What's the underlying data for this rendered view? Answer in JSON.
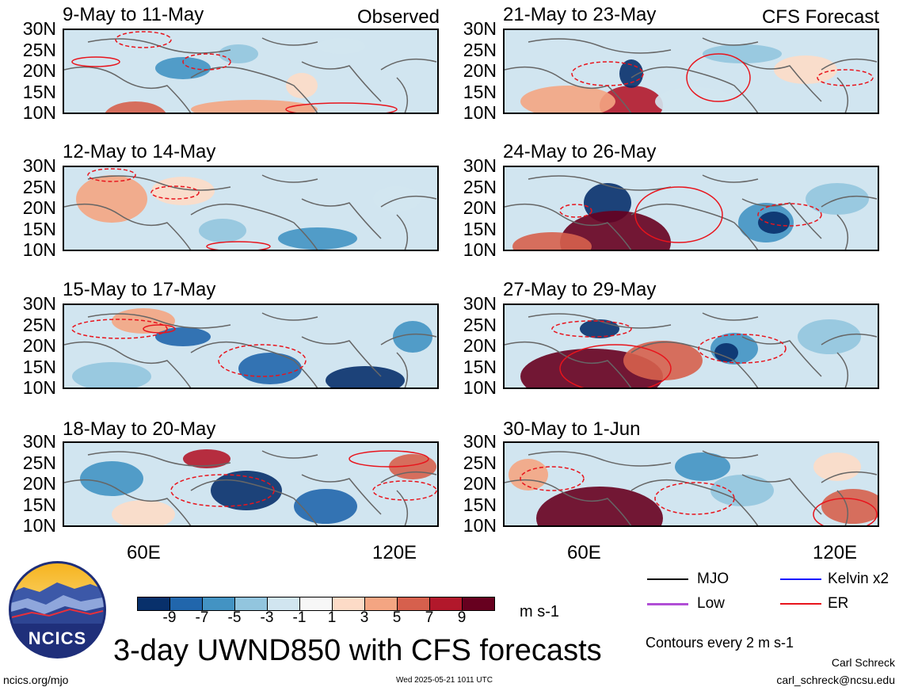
{
  "left_tag": "Observed",
  "right_tag": "CFS Forecast",
  "panels_left": [
    {
      "title": "9-May to 11-May"
    },
    {
      "title": "12-May to 14-May"
    },
    {
      "title": "15-May to 17-May"
    },
    {
      "title": "18-May to 20-May"
    }
  ],
  "panels_right": [
    {
      "title": "21-May to 23-May"
    },
    {
      "title": "24-May to 26-May"
    },
    {
      "title": "27-May to 29-May"
    },
    {
      "title": "30-May to 1-Jun"
    }
  ],
  "lat_labels": [
    "30N",
    "25N",
    "20N",
    "15N",
    "10N"
  ],
  "lon_labels": [
    "60E",
    "120E"
  ],
  "colorbar": {
    "ticks": [
      "-9",
      "-7",
      "-5",
      "-3",
      "-1",
      "1",
      "3",
      "5",
      "7",
      "9"
    ],
    "colors": [
      "#08306b",
      "#2166ac",
      "#4393c3",
      "#92c5de",
      "#d1e5f0",
      "#f7f7f7",
      "#fddbc7",
      "#f4a582",
      "#d6604d",
      "#b2182b",
      "#67001f"
    ],
    "units": "m s-1"
  },
  "legend": {
    "mjo": "MJO",
    "kelvin": "Kelvin x2",
    "low": "Low",
    "er": "ER",
    "contours_note": "Contours every 2 m s-1"
  },
  "main_title": "3-day UWND850 with CFS forecasts",
  "logo_text": "NCICS",
  "footer": {
    "url": "ncics.org/mjo",
    "timestamp": "Wed 2025-05-21 1011 UTC",
    "author": "Carl Schreck",
    "email": "carl_schreck@ncsu.edu"
  }
}
